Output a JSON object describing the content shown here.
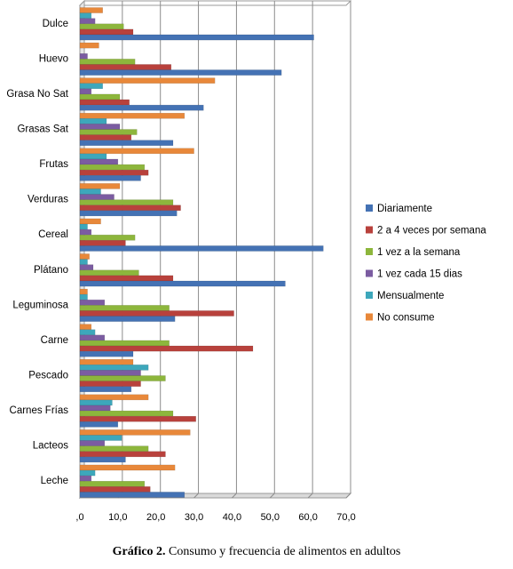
{
  "chart_data": {
    "type": "bar",
    "orientation": "horizontal",
    "categories": [
      "Dulce",
      "Huevo",
      "Grasa No Sat",
      "Grasas Sat",
      "Frutas",
      "Verduras",
      "Cereal",
      "Plátano",
      "Leguminosa",
      "Carne",
      "Pescado",
      "Carnes Frías",
      "Lacteos",
      "Leche"
    ],
    "series": [
      {
        "name": "No consume",
        "color": "#e8883a",
        "values": [
          6,
          5,
          35.5,
          27.5,
          30,
          10.5,
          5.5,
          2.5,
          2,
          3,
          14,
          18,
          29,
          25
        ]
      },
      {
        "name": "Mensualmente",
        "color": "#3da7bb",
        "values": [
          3,
          0,
          6,
          7,
          7,
          5.5,
          2,
          2,
          2,
          4,
          18,
          8.5,
          11,
          4
        ]
      },
      {
        "name": "1 vez cada 15 dias",
        "color": "#7b5ca1",
        "values": [
          4,
          2,
          3,
          10.5,
          10,
          9,
          3,
          3.5,
          6.5,
          6.5,
          16,
          8,
          6.5,
          3
        ]
      },
      {
        "name": "1 vez a la semana",
        "color": "#8db63c",
        "values": [
          11.5,
          14.5,
          10.5,
          15,
          17,
          24.5,
          14.5,
          15.5,
          23.5,
          23.5,
          22.5,
          24.5,
          18,
          17
        ]
      },
      {
        "name": "2 a 4 veces por semana",
        "color": "#b8413c",
        "values": [
          14,
          24,
          13,
          13.5,
          18,
          26.5,
          12,
          24.5,
          40.5,
          45.5,
          16,
          30.5,
          22.5,
          18.5
        ]
      },
      {
        "name": "Diariamente",
        "color": "#4472b4",
        "values": [
          61.5,
          53,
          32.5,
          24.5,
          16,
          25.5,
          64,
          54,
          25,
          14,
          13.5,
          10,
          12,
          27.5
        ]
      }
    ],
    "xlim": [
      0,
      70
    ],
    "xticks": [
      ",0",
      "10,0",
      "20,0",
      "30,0",
      "40,0",
      "50,0",
      "60,0",
      "70,0"
    ],
    "grid": true,
    "legend": "right"
  },
  "caption": {
    "label": "Gráfico 2.",
    "text": " Consumo y frecuencia de alimentos en adultos"
  }
}
